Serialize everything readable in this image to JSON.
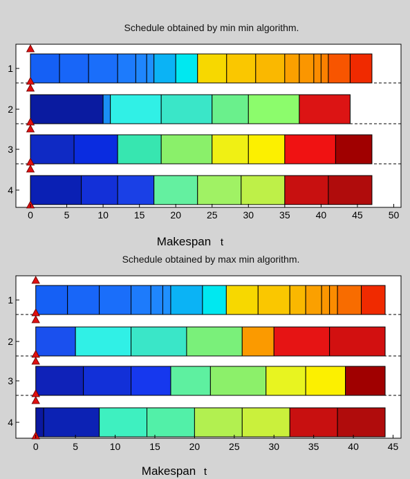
{
  "chart_data": [
    {
      "type": "gantt",
      "title": "Schedule obtained by min min algorithm.",
      "xlabel": "Makespan",
      "xlabel_var": "t",
      "xlim": [
        -2,
        51
      ],
      "xticks": [
        0,
        5,
        10,
        15,
        20,
        25,
        30,
        35,
        40,
        45,
        50
      ],
      "ytick_labels": [
        "1",
        "2",
        "3",
        "4"
      ],
      "rows": [
        {
          "label": "1",
          "tasks": [
            {
              "start": 0,
              "end": 4,
              "color": "#1560f5"
            },
            {
              "start": 4,
              "end": 8,
              "color": "#1866f8"
            },
            {
              "start": 8,
              "end": 12,
              "color": "#1a6efa"
            },
            {
              "start": 12,
              "end": 14.5,
              "color": "#1d7bfc"
            },
            {
              "start": 14.5,
              "end": 16,
              "color": "#1f86fd"
            },
            {
              "start": 16,
              "end": 17,
              "color": "#1f90fe"
            },
            {
              "start": 17,
              "end": 20,
              "color": "#0bb3f5"
            },
            {
              "start": 20,
              "end": 23,
              "color": "#00e8f0"
            },
            {
              "start": 23,
              "end": 27,
              "color": "#f7d800"
            },
            {
              "start": 27,
              "end": 31,
              "color": "#fac700"
            },
            {
              "start": 31,
              "end": 35,
              "color": "#fab800"
            },
            {
              "start": 35,
              "end": 37,
              "color": "#fba000"
            },
            {
              "start": 37,
              "end": 39,
              "color": "#fb9600"
            },
            {
              "start": 39,
              "end": 40,
              "color": "#fb8c00"
            },
            {
              "start": 40,
              "end": 41,
              "color": "#fb8000"
            },
            {
              "start": 41,
              "end": 44,
              "color": "#f85500"
            },
            {
              "start": 44,
              "end": 47,
              "color": "#f02a00"
            }
          ]
        },
        {
          "label": "2",
          "tasks": [
            {
              "start": 0,
              "end": 10,
              "color": "#0a1ba0"
            },
            {
              "start": 10,
              "end": 11,
              "color": "#1a90f5"
            },
            {
              "start": 11,
              "end": 18,
              "color": "#30f0e6"
            },
            {
              "start": 18,
              "end": 25,
              "color": "#3ae6c8"
            },
            {
              "start": 25,
              "end": 30,
              "color": "#6af08c"
            },
            {
              "start": 30,
              "end": 37,
              "color": "#8cfc6c"
            },
            {
              "start": 37,
              "end": 44,
              "color": "#dc1414"
            }
          ]
        },
        {
          "label": "3",
          "tasks": [
            {
              "start": 0,
              "end": 6,
              "color": "#0f2ac4"
            },
            {
              "start": 6,
              "end": 12,
              "color": "#0a2ce0"
            },
            {
              "start": 12,
              "end": 18,
              "color": "#37e6b0"
            },
            {
              "start": 18,
              "end": 25,
              "color": "#8af06a"
            },
            {
              "start": 25,
              "end": 30,
              "color": "#f0f014"
            },
            {
              "start": 30,
              "end": 35,
              "color": "#fcf000"
            },
            {
              "start": 35,
              "end": 42,
              "color": "#f01212"
            },
            {
              "start": 42,
              "end": 47,
              "color": "#a00000"
            }
          ]
        },
        {
          "label": "4",
          "tasks": [
            {
              "start": 0,
              "end": 7,
              "color": "#0a20b4"
            },
            {
              "start": 7,
              "end": 12,
              "color": "#1330d8"
            },
            {
              "start": 12,
              "end": 17,
              "color": "#1a40e6"
            },
            {
              "start": 17,
              "end": 23,
              "color": "#64f0a0"
            },
            {
              "start": 23,
              "end": 29,
              "color": "#a0f264"
            },
            {
              "start": 29,
              "end": 35,
              "color": "#bef048"
            },
            {
              "start": 35,
              "end": 41,
              "color": "#c81010"
            },
            {
              "start": 41,
              "end": 47,
              "color": "#b00c0c"
            }
          ]
        }
      ]
    },
    {
      "type": "gantt",
      "title": "Schedule obtained by max min algorithm.",
      "xlabel": "Makespan",
      "xlabel_var": "t",
      "xlim": [
        -2.5,
        46
      ],
      "xticks": [
        0,
        5,
        10,
        15,
        20,
        25,
        30,
        35,
        40,
        45
      ],
      "ytick_labels": [
        "1",
        "2",
        "3",
        "4"
      ],
      "rows": [
        {
          "label": "1",
          "tasks": [
            {
              "start": 0,
              "end": 4,
              "color": "#1560f5"
            },
            {
              "start": 4,
              "end": 8,
              "color": "#1866f8"
            },
            {
              "start": 8,
              "end": 12,
              "color": "#1a6efa"
            },
            {
              "start": 12,
              "end": 14.5,
              "color": "#1d7bfc"
            },
            {
              "start": 14.5,
              "end": 16,
              "color": "#1f86fd"
            },
            {
              "start": 16,
              "end": 17,
              "color": "#1f90fe"
            },
            {
              "start": 17,
              "end": 21,
              "color": "#0bb3f5"
            },
            {
              "start": 21,
              "end": 24,
              "color": "#00e8f0"
            },
            {
              "start": 24,
              "end": 28,
              "color": "#f7d800"
            },
            {
              "start": 28,
              "end": 32,
              "color": "#fac700"
            },
            {
              "start": 32,
              "end": 34,
              "color": "#fab800"
            },
            {
              "start": 34,
              "end": 36,
              "color": "#fba000"
            },
            {
              "start": 36,
              "end": 37,
              "color": "#fb9600"
            },
            {
              "start": 37,
              "end": 38,
              "color": "#fb8c00"
            },
            {
              "start": 38,
              "end": 41,
              "color": "#f86c00"
            },
            {
              "start": 41,
              "end": 44,
              "color": "#f02a00"
            }
          ]
        },
        {
          "label": "2",
          "tasks": [
            {
              "start": 0,
              "end": 5,
              "color": "#1a50ee"
            },
            {
              "start": 5,
              "end": 12,
              "color": "#30f0e6"
            },
            {
              "start": 12,
              "end": 19,
              "color": "#3ae6c8"
            },
            {
              "start": 19,
              "end": 26,
              "color": "#7af07a"
            },
            {
              "start": 26,
              "end": 30,
              "color": "#fb9a00"
            },
            {
              "start": 30,
              "end": 37,
              "color": "#e61414"
            },
            {
              "start": 37,
              "end": 44,
              "color": "#d21010"
            }
          ]
        },
        {
          "label": "3",
          "tasks": [
            {
              "start": 0,
              "end": 6,
              "color": "#0f22b8"
            },
            {
              "start": 6,
              "end": 12,
              "color": "#1230d8"
            },
            {
              "start": 12,
              "end": 17,
              "color": "#1638ee"
            },
            {
              "start": 17,
              "end": 22,
              "color": "#5ef0a0"
            },
            {
              "start": 22,
              "end": 29,
              "color": "#8cf06a"
            },
            {
              "start": 29,
              "end": 34,
              "color": "#e8f420"
            },
            {
              "start": 34,
              "end": 39,
              "color": "#fcf000"
            },
            {
              "start": 39,
              "end": 44,
              "color": "#a00000"
            }
          ]
        },
        {
          "label": "4",
          "tasks": [
            {
              "start": 0,
              "end": 1,
              "color": "#0a18a0"
            },
            {
              "start": 1,
              "end": 8,
              "color": "#0c22b4"
            },
            {
              "start": 8,
              "end": 14,
              "color": "#3ef0c0"
            },
            {
              "start": 14,
              "end": 20,
              "color": "#52f0a8"
            },
            {
              "start": 20,
              "end": 26,
              "color": "#b2f050"
            },
            {
              "start": 26,
              "end": 32,
              "color": "#caf03c"
            },
            {
              "start": 32,
              "end": 38,
              "color": "#c81010"
            },
            {
              "start": 38,
              "end": 44,
              "color": "#b00c0c"
            }
          ]
        }
      ]
    }
  ]
}
